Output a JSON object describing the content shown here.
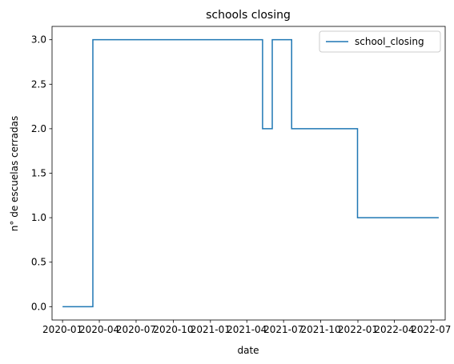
{
  "chart_data": {
    "type": "line",
    "title": "schools closing",
    "xlabel": "date",
    "ylabel": "n° de escuelas cerradas",
    "x_tick_labels": [
      "2020-01",
      "2020-04",
      "2020-07",
      "2020-10",
      "2021-01",
      "2021-04",
      "2021-07",
      "2021-10",
      "2022-01",
      "2022-04",
      "2022-07"
    ],
    "x_tick_dates": [
      "2020-01-01",
      "2020-04-01",
      "2020-07-01",
      "2020-10-01",
      "2021-01-01",
      "2021-04-01",
      "2021-07-01",
      "2021-10-01",
      "2022-01-01",
      "2022-04-01",
      "2022-07-01"
    ],
    "y_tick_labels": [
      "0.0",
      "0.5",
      "1.0",
      "1.5",
      "2.0",
      "2.5",
      "3.0"
    ],
    "y_ticks": [
      0,
      0.5,
      1.0,
      1.5,
      2.0,
      2.5,
      3.0
    ],
    "xlim": [
      "2019-12-06",
      "2022-08-05"
    ],
    "ylim": [
      -0.15,
      3.15
    ],
    "grid": false,
    "legend_position": "top-right",
    "series": [
      {
        "name": "school_closing",
        "color": "#1f77b4",
        "points": [
          {
            "x": "2020-01-01",
            "y": 0
          },
          {
            "x": "2020-03-16",
            "y": 0
          },
          {
            "x": "2020-03-16",
            "y": 3
          },
          {
            "x": "2021-05-10",
            "y": 3
          },
          {
            "x": "2021-05-10",
            "y": 2
          },
          {
            "x": "2021-06-03",
            "y": 2
          },
          {
            "x": "2021-06-03",
            "y": 3
          },
          {
            "x": "2021-07-21",
            "y": 3
          },
          {
            "x": "2021-07-21",
            "y": 2
          },
          {
            "x": "2021-12-31",
            "y": 2
          },
          {
            "x": "2021-12-31",
            "y": 1
          },
          {
            "x": "2022-07-20",
            "y": 1
          }
        ]
      }
    ]
  }
}
